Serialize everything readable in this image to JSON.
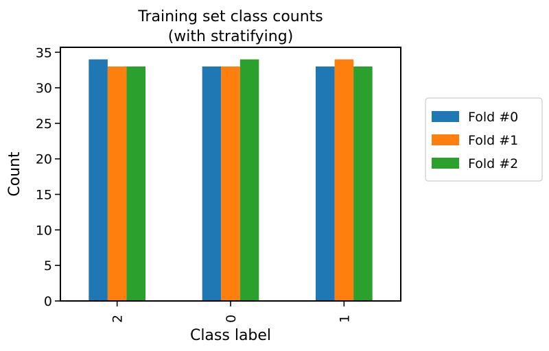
{
  "chart_data": {
    "type": "bar",
    "title": "Training set class counts",
    "subtitle": "(with stratifying)",
    "xlabel": "Class label",
    "ylabel": "Count",
    "categories": [
      "2",
      "0",
      "1"
    ],
    "series": [
      {
        "name": "Fold #0",
        "color": "#1f77b4",
        "values": [
          34,
          33,
          33
        ]
      },
      {
        "name": "Fold #1",
        "color": "#ff7f0e",
        "values": [
          33,
          33,
          34
        ]
      },
      {
        "name": "Fold #2",
        "color": "#2ca02c",
        "values": [
          33,
          34,
          33
        ]
      }
    ],
    "ylim": [
      0,
      35.7
    ],
    "yticks": [
      "0",
      "5",
      "10",
      "15",
      "20",
      "25",
      "30",
      "35"
    ],
    "grid": false,
    "legend": "outside-right"
  }
}
